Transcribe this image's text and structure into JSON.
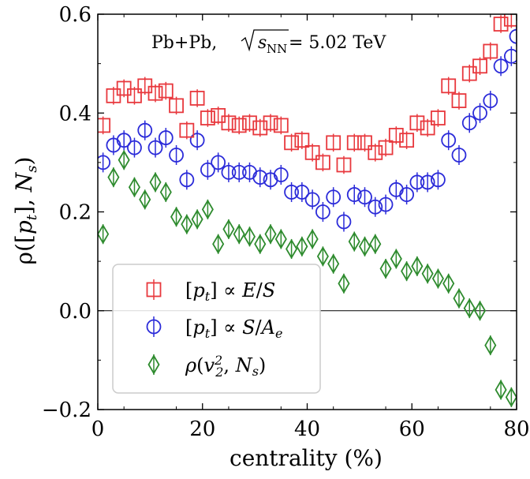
{
  "chart_data": {
    "type": "scatter",
    "title": "",
    "annotation": "Pb+Pb, √s_NN = 5.02 TeV",
    "annotation_main": "Pb+Pb, ",
    "annotation_sqrt_arg": "s",
    "annotation_sub": "NN",
    "annotation_rest": " = 5.02 TeV",
    "xlabel": "centrality (%)",
    "ylabel": "ρ([p_t], N_s)",
    "ylabel_parts": {
      "rho": "ρ([",
      "p": "p",
      "t": "t",
      "mid": "], ",
      "N": "N",
      "s": "s",
      "close": ")"
    },
    "xlim": [
      0,
      80
    ],
    "ylim": [
      -0.2,
      0.6
    ],
    "xticks": [
      0,
      20,
      40,
      60,
      80
    ],
    "yticks": [
      -0.2,
      0.0,
      0.2,
      0.4,
      0.6
    ],
    "xtick_labels": [
      "0",
      "20",
      "40",
      "60",
      "80"
    ],
    "ytick_labels": [
      "−0.2",
      "0.0",
      "0.2",
      "0.4",
      "0.6"
    ],
    "zero_line": 0.0,
    "legend_position": "lower-left",
    "series": [
      {
        "name": "[p_t] ∝ E/S",
        "legend_label": "[pt] ∝ E/S",
        "marker": "square",
        "color": "#e8383d",
        "error": 0.018,
        "x": [
          1,
          3,
          5,
          7,
          9,
          11,
          13,
          15,
          17,
          19,
          21,
          23,
          25,
          27,
          29,
          31,
          33,
          35,
          37,
          39,
          41,
          43,
          45,
          47,
          49,
          51,
          53,
          55,
          57,
          59,
          61,
          63,
          65,
          67,
          69,
          71,
          73,
          75,
          77,
          79
        ],
        "y": [
          0.375,
          0.435,
          0.45,
          0.435,
          0.455,
          0.44,
          0.445,
          0.415,
          0.365,
          0.43,
          0.39,
          0.395,
          0.38,
          0.375,
          0.38,
          0.37,
          0.38,
          0.375,
          0.34,
          0.345,
          0.32,
          0.3,
          0.34,
          0.295,
          0.34,
          0.34,
          0.32,
          0.33,
          0.355,
          0.345,
          0.38,
          0.37,
          0.39,
          0.455,
          0.425,
          0.48,
          0.495,
          0.525,
          0.58,
          0.59
        ]
      },
      {
        "name": "[p_t] ∝ S/A_e",
        "legend_label": "[pt] ∝ S/Ae",
        "marker": "circle",
        "color": "#2b2bd9",
        "error": 0.02,
        "x": [
          1,
          3,
          5,
          7,
          9,
          11,
          13,
          15,
          17,
          19,
          21,
          23,
          25,
          27,
          29,
          31,
          33,
          35,
          37,
          39,
          41,
          43,
          45,
          47,
          49,
          51,
          53,
          55,
          57,
          59,
          61,
          63,
          65,
          67,
          69,
          71,
          73,
          75,
          77,
          79,
          80
        ],
        "y": [
          0.3,
          0.335,
          0.345,
          0.33,
          0.365,
          0.33,
          0.35,
          0.315,
          0.265,
          0.345,
          0.285,
          0.3,
          0.28,
          0.28,
          0.28,
          0.27,
          0.265,
          0.275,
          0.24,
          0.24,
          0.225,
          0.2,
          0.23,
          0.18,
          0.235,
          0.23,
          0.21,
          0.215,
          0.245,
          0.235,
          0.26,
          0.26,
          0.265,
          0.345,
          0.315,
          0.38,
          0.4,
          0.425,
          0.495,
          0.515,
          0.555
        ]
      },
      {
        "name": "ρ(v_2^2, N_s)",
        "legend_label": "ρ(v2², Ns)",
        "marker": "diamond",
        "color": "#2e8b2e",
        "error": 0.02,
        "x": [
          1,
          3,
          5,
          7,
          9,
          11,
          13,
          15,
          17,
          19,
          21,
          23,
          25,
          27,
          29,
          31,
          33,
          35,
          37,
          39,
          41,
          43,
          45,
          47,
          49,
          51,
          53,
          55,
          57,
          59,
          61,
          63,
          65,
          67,
          69,
          71,
          73,
          75,
          77,
          79
        ],
        "y": [
          0.155,
          0.27,
          0.305,
          0.25,
          0.225,
          0.26,
          0.24,
          0.19,
          0.175,
          0.185,
          0.205,
          0.135,
          0.165,
          0.155,
          0.15,
          0.135,
          0.155,
          0.145,
          0.125,
          0.13,
          0.145,
          0.11,
          0.095,
          0.055,
          0.14,
          0.13,
          0.135,
          0.085,
          0.105,
          0.08,
          0.09,
          0.075,
          0.065,
          0.055,
          0.025,
          0.005,
          0.0,
          -0.07,
          -0.16,
          -0.175
        ]
      }
    ]
  }
}
